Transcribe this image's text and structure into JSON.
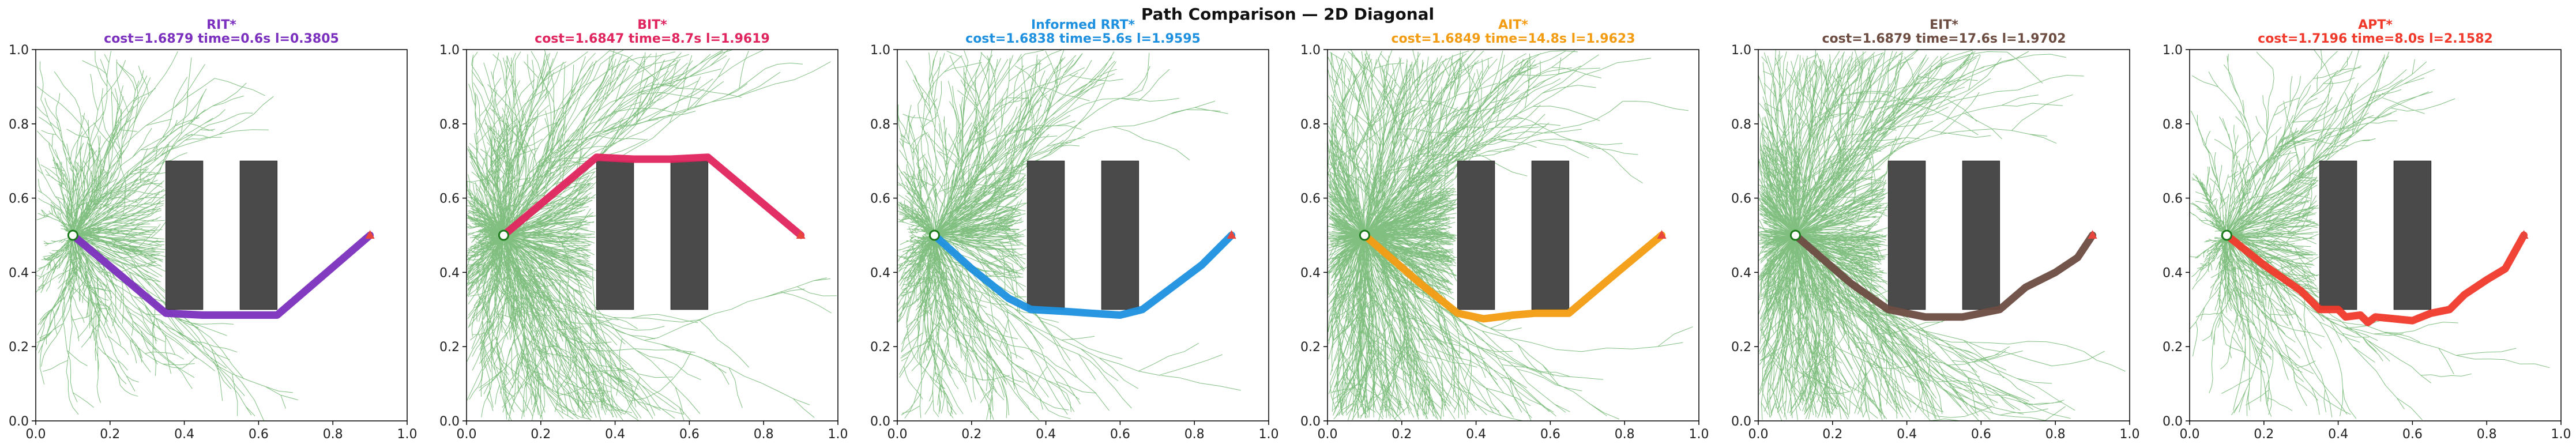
{
  "figure": {
    "title": "Path Comparison — 2D Diagonal"
  },
  "chart_data": [
    {
      "type": "line",
      "planner": "RIT*",
      "color": "#7b2fbe",
      "stats": "cost=1.6879  time=0.6s  l=0.3805",
      "xlim": [
        0,
        1
      ],
      "ylim": [
        0,
        1
      ],
      "tree_density": 0.25,
      "start": [
        0.1,
        0.5
      ],
      "goal": [
        0.9,
        0.5
      ],
      "obstacles": [
        [
          0.35,
          0.3,
          0.1,
          0.4
        ],
        [
          0.55,
          0.3,
          0.1,
          0.4
        ]
      ],
      "path": [
        [
          0.1,
          0.5
        ],
        [
          0.35,
          0.29
        ],
        [
          0.45,
          0.285
        ],
        [
          0.55,
          0.285
        ],
        [
          0.65,
          0.285
        ],
        [
          0.9,
          0.5
        ]
      ]
    },
    {
      "type": "line",
      "planner": "BIT*",
      "color": "#e0245e",
      "stats": "cost=1.6847  time=8.7s  l=1.9619",
      "xlim": [
        0,
        1
      ],
      "ylim": [
        0,
        1
      ],
      "tree_density": 0.7,
      "start": [
        0.1,
        0.5
      ],
      "goal": [
        0.9,
        0.5
      ],
      "obstacles": [
        [
          0.35,
          0.3,
          0.1,
          0.4
        ],
        [
          0.55,
          0.3,
          0.1,
          0.4
        ]
      ],
      "path": [
        [
          0.1,
          0.5
        ],
        [
          0.35,
          0.71
        ],
        [
          0.45,
          0.705
        ],
        [
          0.55,
          0.705
        ],
        [
          0.65,
          0.71
        ],
        [
          0.9,
          0.5
        ]
      ]
    },
    {
      "type": "line",
      "planner": "Informed RRT*",
      "color": "#1e90e0",
      "stats": "cost=1.6838  time=5.6s  l=1.9595",
      "xlim": [
        0,
        1
      ],
      "ylim": [
        0,
        1
      ],
      "tree_density": 0.5,
      "start": [
        0.1,
        0.5
      ],
      "goal": [
        0.9,
        0.5
      ],
      "obstacles": [
        [
          0.35,
          0.3,
          0.1,
          0.4
        ],
        [
          0.55,
          0.3,
          0.1,
          0.4
        ]
      ],
      "path": [
        [
          0.1,
          0.5
        ],
        [
          0.2,
          0.41
        ],
        [
          0.3,
          0.33
        ],
        [
          0.36,
          0.3
        ],
        [
          0.45,
          0.295
        ],
        [
          0.52,
          0.29
        ],
        [
          0.6,
          0.285
        ],
        [
          0.66,
          0.3
        ],
        [
          0.74,
          0.36
        ],
        [
          0.82,
          0.42
        ],
        [
          0.9,
          0.5
        ]
      ]
    },
    {
      "type": "line",
      "planner": "AIT*",
      "color": "#f39c12",
      "stats": "cost=1.6849  time=14.8s  l=1.9623",
      "xlim": [
        0,
        1
      ],
      "ylim": [
        0,
        1
      ],
      "tree_density": 1.0,
      "start": [
        0.1,
        0.5
      ],
      "goal": [
        0.9,
        0.5
      ],
      "obstacles": [
        [
          0.35,
          0.3,
          0.1,
          0.4
        ],
        [
          0.55,
          0.3,
          0.1,
          0.4
        ]
      ],
      "path": [
        [
          0.1,
          0.5
        ],
        [
          0.25,
          0.37
        ],
        [
          0.35,
          0.29
        ],
        [
          0.42,
          0.275
        ],
        [
          0.5,
          0.285
        ],
        [
          0.56,
          0.29
        ],
        [
          0.65,
          0.29
        ],
        [
          0.78,
          0.4
        ],
        [
          0.9,
          0.5
        ]
      ]
    },
    {
      "type": "line",
      "planner": "EIT*",
      "color": "#6d4c41",
      "stats": "cost=1.6879  time=17.6s  l=1.9702",
      "xlim": [
        0,
        1
      ],
      "ylim": [
        0,
        1
      ],
      "tree_density": 1.0,
      "start": [
        0.1,
        0.5
      ],
      "goal": [
        0.9,
        0.5
      ],
      "obstacles": [
        [
          0.35,
          0.3,
          0.1,
          0.4
        ],
        [
          0.55,
          0.3,
          0.1,
          0.4
        ]
      ],
      "path": [
        [
          0.1,
          0.5
        ],
        [
          0.25,
          0.37
        ],
        [
          0.35,
          0.3
        ],
        [
          0.45,
          0.28
        ],
        [
          0.55,
          0.28
        ],
        [
          0.65,
          0.3
        ],
        [
          0.72,
          0.36
        ],
        [
          0.8,
          0.4
        ],
        [
          0.86,
          0.44
        ],
        [
          0.9,
          0.5
        ]
      ]
    },
    {
      "type": "line",
      "planner": "APT*",
      "color": "#f0392b",
      "stats": "cost=1.7196  time=8.0s  l=2.1582",
      "xlim": [
        0,
        1
      ],
      "ylim": [
        0,
        1
      ],
      "tree_density": 0.28,
      "start": [
        0.1,
        0.5
      ],
      "goal": [
        0.9,
        0.5
      ],
      "obstacles": [
        [
          0.35,
          0.3,
          0.1,
          0.4
        ],
        [
          0.55,
          0.3,
          0.1,
          0.4
        ]
      ],
      "path": [
        [
          0.1,
          0.5
        ],
        [
          0.2,
          0.42
        ],
        [
          0.3,
          0.35
        ],
        [
          0.35,
          0.3
        ],
        [
          0.4,
          0.3
        ],
        [
          0.42,
          0.28
        ],
        [
          0.46,
          0.285
        ],
        [
          0.48,
          0.265
        ],
        [
          0.5,
          0.28
        ],
        [
          0.55,
          0.275
        ],
        [
          0.6,
          0.27
        ],
        [
          0.65,
          0.29
        ],
        [
          0.7,
          0.3
        ],
        [
          0.74,
          0.34
        ],
        [
          0.8,
          0.38
        ],
        [
          0.85,
          0.41
        ],
        [
          0.9,
          0.5
        ]
      ]
    }
  ]
}
